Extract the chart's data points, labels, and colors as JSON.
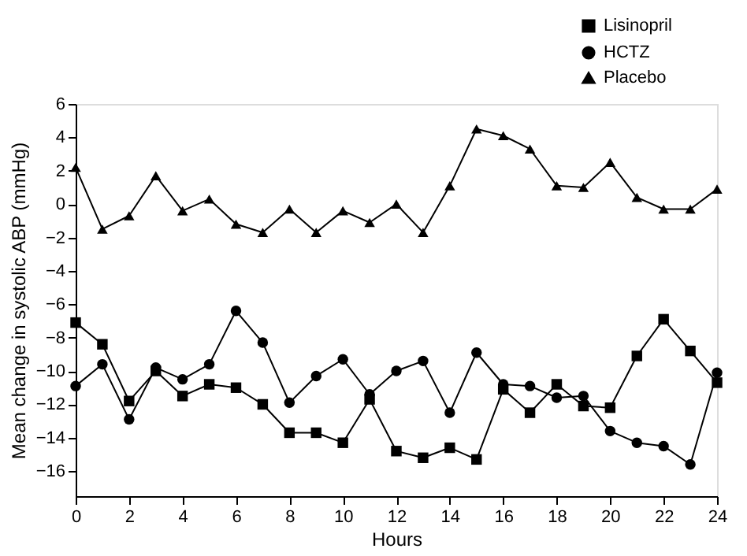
{
  "chart_data": {
    "type": "line",
    "xlabel": "Hours",
    "ylabel": "Mean change in systolic ABP (mmHg)",
    "x": [
      0,
      1,
      2,
      3,
      4,
      5,
      6,
      7,
      8,
      9,
      10,
      11,
      12,
      13,
      14,
      15,
      16,
      17,
      18,
      19,
      20,
      21,
      22,
      23,
      24
    ],
    "series": [
      {
        "name": "Lisinopril",
        "color": "#000000",
        "marker": "square",
        "values": [
          -7.1,
          -8.4,
          -11.8,
          -10.0,
          -11.5,
          -10.8,
          -11.0,
          -12.0,
          -13.7,
          -13.7,
          -14.3,
          -11.7,
          -14.8,
          -15.2,
          -14.6,
          -15.3,
          -11.1,
          -12.5,
          -10.8,
          -12.1,
          -12.2,
          -9.1,
          -6.9,
          -8.8,
          -10.7
        ]
      },
      {
        "name": "HCTZ",
        "color": "#000000",
        "marker": "circle",
        "values": [
          -10.9,
          -9.6,
          -12.9,
          -9.8,
          -10.5,
          -9.6,
          -6.4,
          -8.3,
          -11.9,
          -10.3,
          -9.3,
          -11.4,
          -10.0,
          -9.4,
          -12.5,
          -8.9,
          -10.8,
          -10.9,
          -11.6,
          -11.5,
          -13.6,
          -14.3,
          -14.5,
          -15.6,
          -10.1
        ]
      },
      {
        "name": "Placebo",
        "color": "#000000",
        "marker": "triangle",
        "values": [
          2.2,
          -1.5,
          -0.7,
          1.7,
          -0.4,
          0.3,
          -1.2,
          -1.7,
          -0.3,
          -1.7,
          -0.4,
          -1.1,
          0.0,
          -1.7,
          1.1,
          4.5,
          4.1,
          3.3,
          1.1,
          1.0,
          2.5,
          0.4,
          -0.3,
          -0.3,
          0.9
        ]
      }
    ],
    "xlim": [
      0,
      24
    ],
    "xticks": [
      0,
      2,
      4,
      6,
      8,
      10,
      12,
      14,
      16,
      18,
      20,
      22,
      24
    ],
    "ylim": [
      -17.5,
      6
    ],
    "yticks": [
      -16,
      -14,
      -12,
      -10,
      -8,
      -6,
      -4,
      -2,
      0,
      2,
      4,
      6
    ],
    "grid": false,
    "legend": "top right",
    "line_style": "solid"
  }
}
